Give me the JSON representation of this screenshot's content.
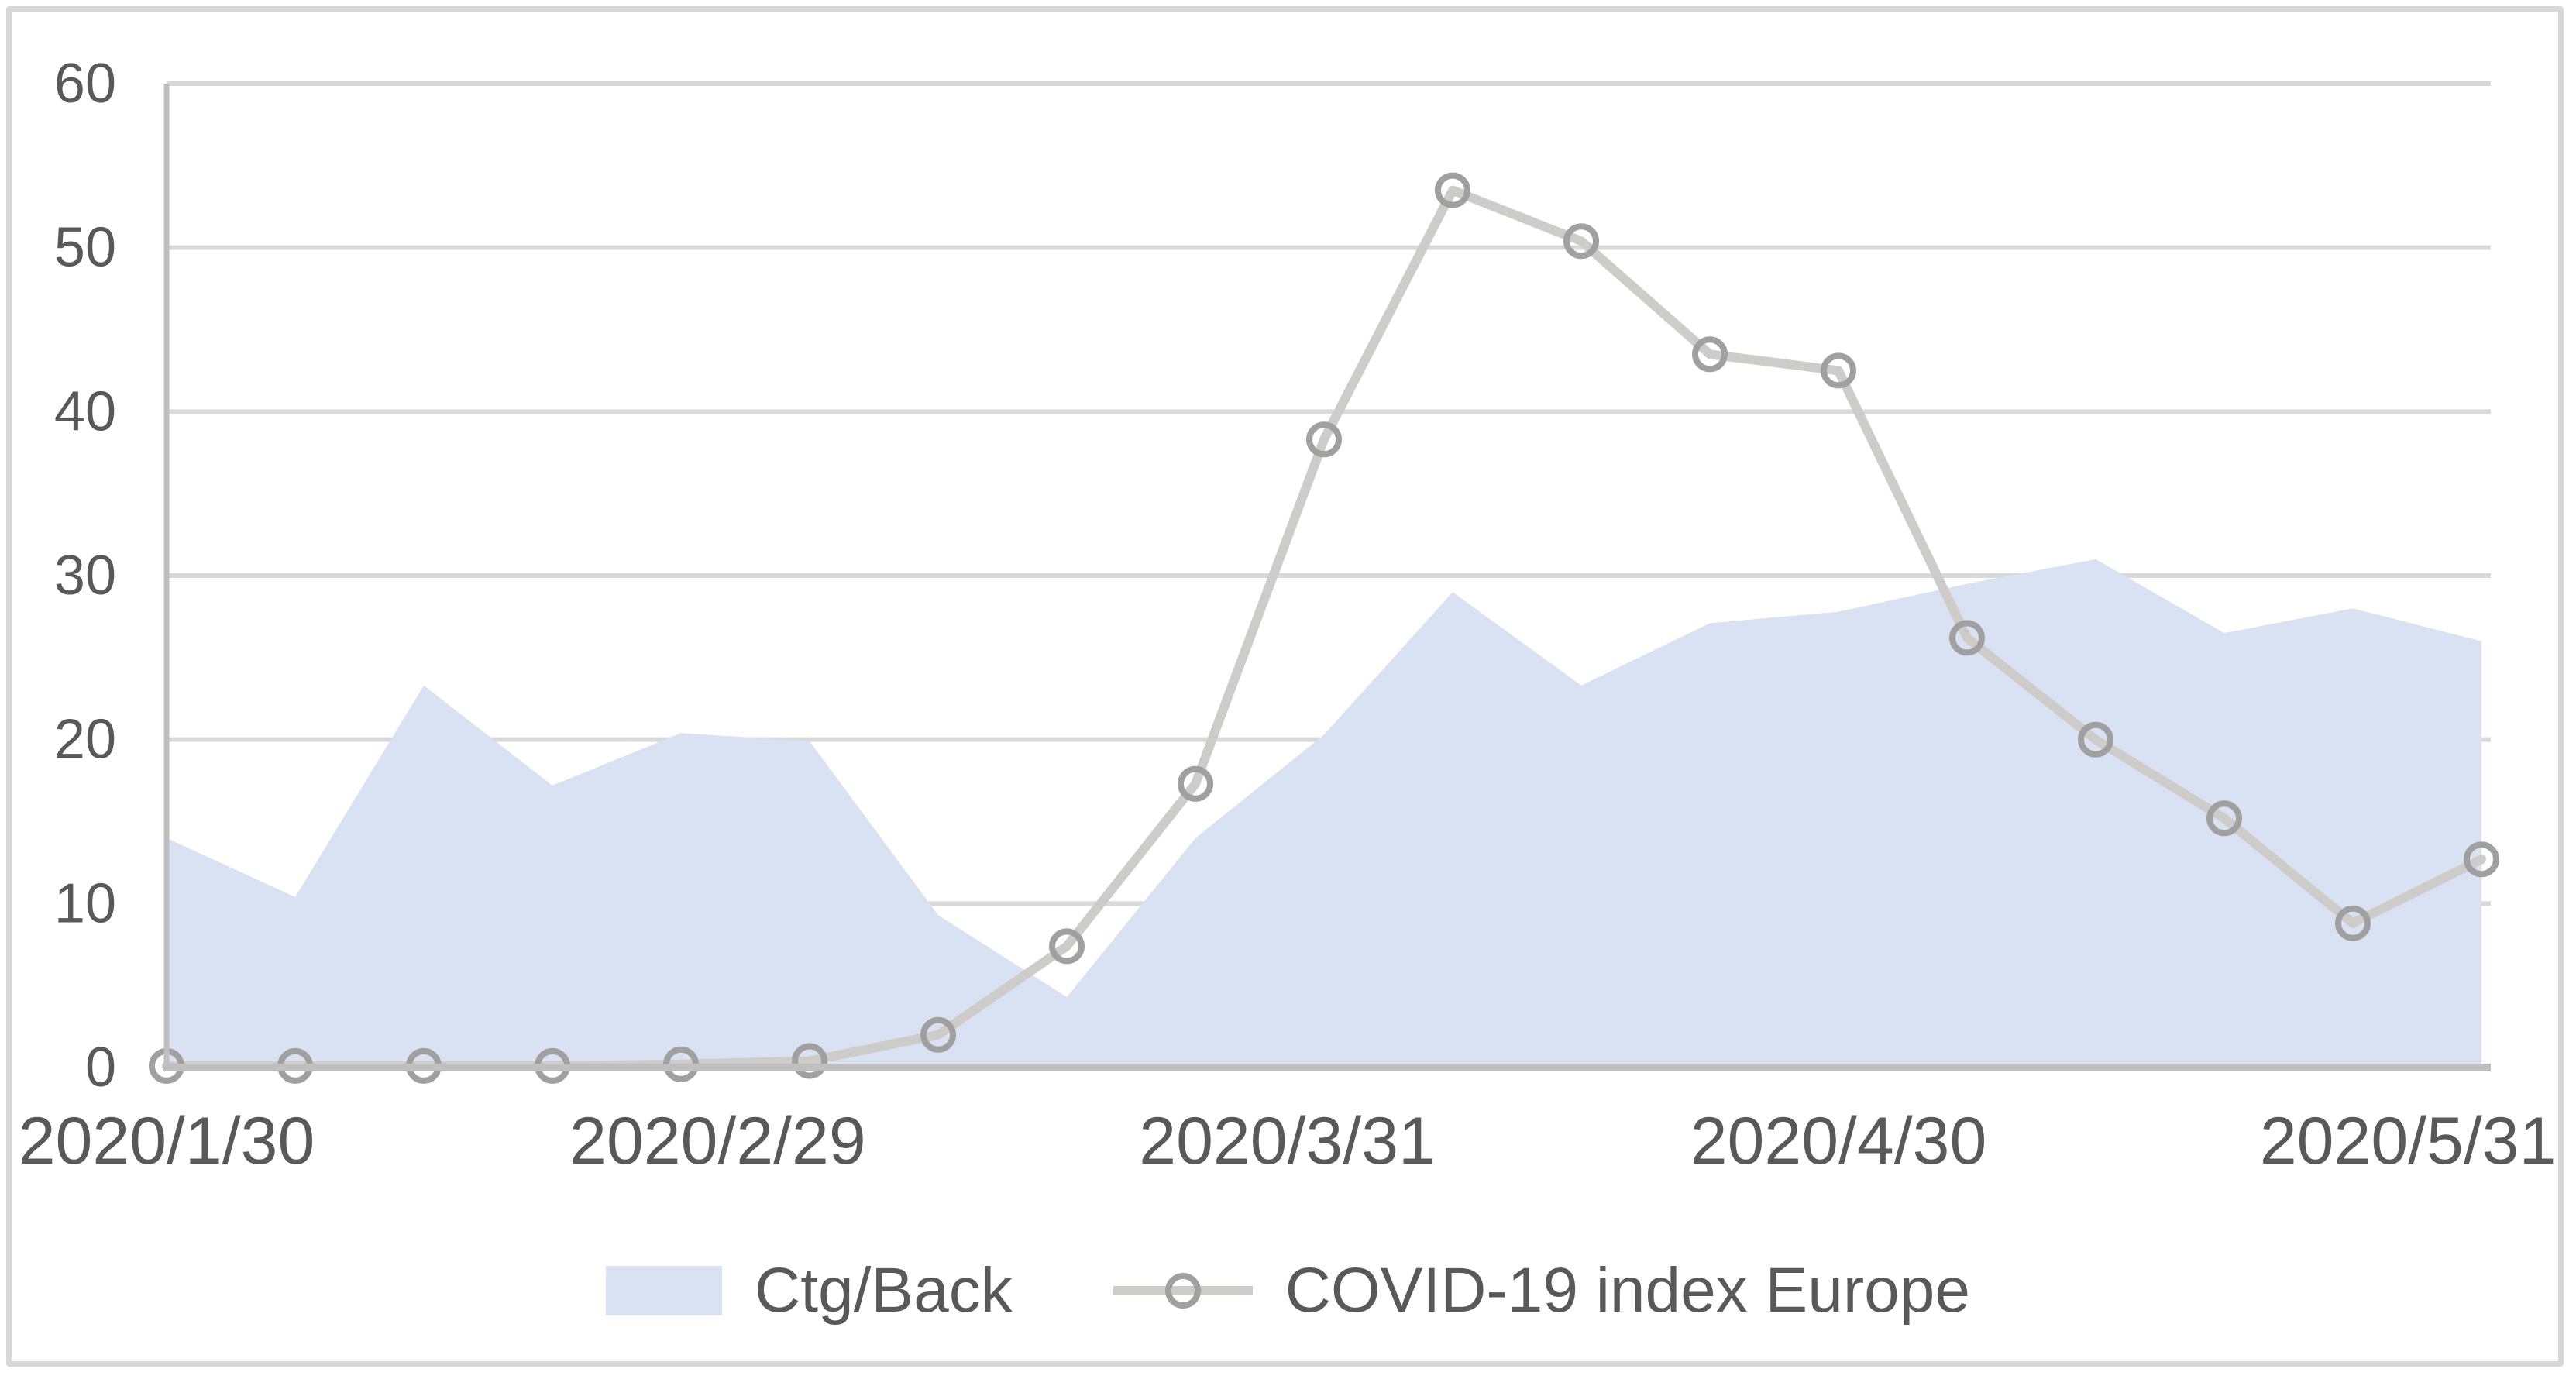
{
  "chart_data": {
    "type": "area-line-combo",
    "title": "",
    "xlabel": "",
    "ylabel": "",
    "x_axis": {
      "range_days": [
        0,
        126
      ],
      "ticks": [
        {
          "label": "2020/1/30",
          "day": 0
        },
        {
          "label": "2020/2/29",
          "day": 30
        },
        {
          "label": "2020/3/31",
          "day": 61
        },
        {
          "label": "2020/4/30",
          "day": 91
        },
        {
          "label": "2020/5/31",
          "day": 122
        }
      ]
    },
    "y_axis": {
      "range": [
        0,
        60
      ],
      "ticks": [
        0,
        10,
        20,
        30,
        40,
        50,
        60
      ]
    },
    "grid": "horizontal",
    "legend_position": "bottom-center",
    "x_days": [
      0,
      7,
      14,
      21,
      28,
      35,
      42,
      49,
      56,
      63,
      70,
      77,
      84,
      91,
      98,
      105,
      112,
      119,
      126
    ],
    "series": [
      {
        "name": "Ctg/Back",
        "type": "area",
        "color": "#d9e2f3",
        "values": [
          14,
          10.4,
          23.3,
          17.2,
          20.4,
          19.9,
          9.3,
          4.3,
          14,
          20.3,
          29,
          23.3,
          27.1,
          27.8,
          29.5,
          31,
          26.5,
          28,
          26
        ]
      },
      {
        "name": "COVID-19 index Europe",
        "type": "line",
        "color": "#cdccc9",
        "marker": "open-circle",
        "marker_color": "#a0a0a0",
        "values": [
          0.1,
          0.1,
          0.1,
          0.1,
          0.2,
          0.4,
          2,
          7.4,
          17.3,
          38.3,
          53.5,
          50.4,
          43.5,
          42.5,
          26.2,
          20,
          15.2,
          8.8,
          12.7
        ]
      }
    ],
    "colors": {
      "gridline": "#d9d9d9",
      "axis_line": "#bfbfbf",
      "tick_text": "#595959",
      "background": "#ffffff",
      "frame_border": "#d8d8d8"
    }
  }
}
